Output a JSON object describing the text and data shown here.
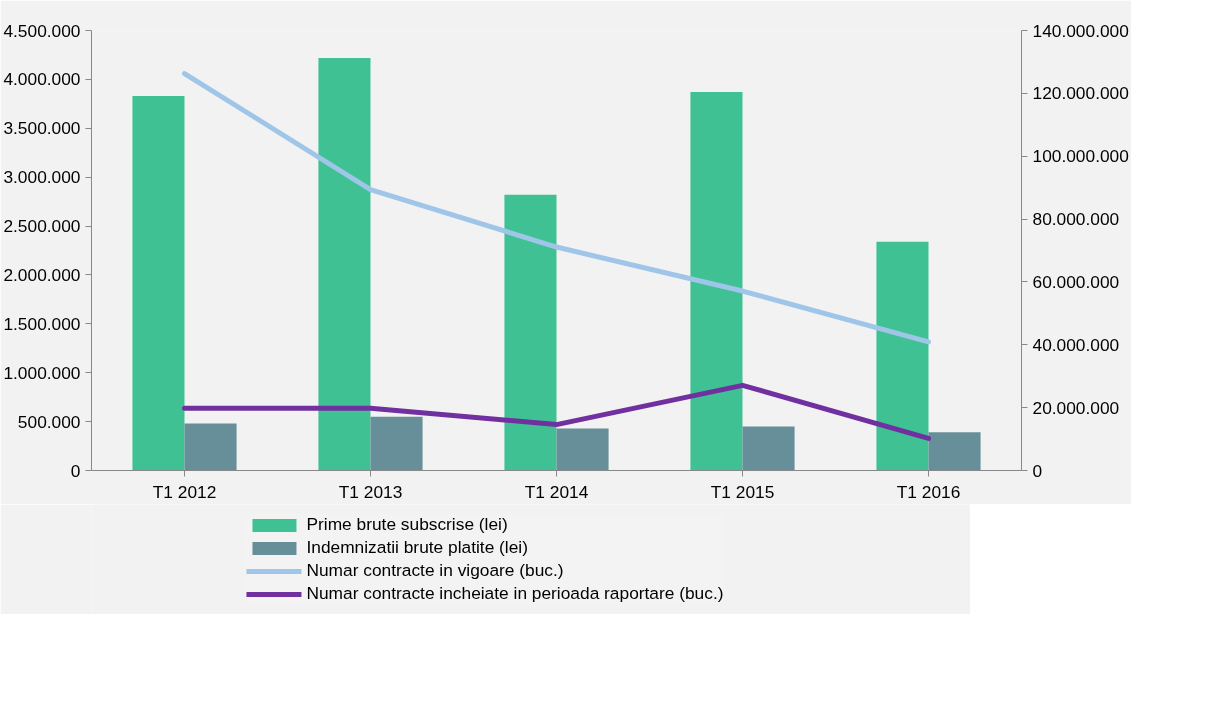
{
  "chart_data": {
    "type": "bar",
    "categories": [
      "T1 2012",
      "T1 2013",
      "T1 2014",
      "T1 2015",
      "T1 2016"
    ],
    "series": [
      {
        "name": "Prime brute subscrise (lei)",
        "color": "#3fc194",
        "values": [
          3830000,
          4220000,
          2820000,
          3870000,
          2340000
        ]
      },
      {
        "name": "Indemnizatii brute platite (lei)",
        "color": "#668f99",
        "values": [
          480000,
          550000,
          430000,
          450000,
          390000
        ]
      },
      {
        "name": "Numar contracte in vigoare (buc.)",
        "type": "line",
        "axis": "y2",
        "color": "#9fc5e8",
        "values": [
          126300000,
          89400000,
          71100000,
          57100000,
          40900000
        ]
      },
      {
        "name": "Numar contracte incheiate in perioada raportare (buc.)",
        "type": "line",
        "axis": "y2",
        "color": "#7030a0",
        "values": [
          19800000,
          19800000,
          14600000,
          27100000,
          10200000
        ]
      }
    ],
    "ylim": [
      0,
      4500000
    ],
    "yticks": [
      {
        "value": 0,
        "label": "0"
      },
      {
        "value": 500000,
        "label": "500.000"
      },
      {
        "value": 1000000,
        "label": "1.000.000"
      },
      {
        "value": 1500000,
        "label": "1.500.000"
      },
      {
        "value": 2000000,
        "label": "2.000.000"
      },
      {
        "value": 2500000,
        "label": "2.500.000"
      },
      {
        "value": 3000000,
        "label": "3.000.000"
      },
      {
        "value": 3500000,
        "label": "3.500.000"
      },
      {
        "value": 4000000,
        "label": "4.000.000"
      },
      {
        "value": 4500000,
        "label": "4.500.000"
      }
    ],
    "y2lim": [
      0,
      140000000
    ],
    "y2ticks": [
      {
        "value": 0,
        "label": "0"
      },
      {
        "value": 20000000,
        "label": "20.000.000"
      },
      {
        "value": 40000000,
        "label": "40.000.000"
      },
      {
        "value": 60000000,
        "label": "60.000.000"
      },
      {
        "value": 80000000,
        "label": "80.000.000"
      },
      {
        "value": 100000000,
        "label": "100.000.000"
      },
      {
        "value": 120000000,
        "label": "120.000.000"
      },
      {
        "value": 140000000,
        "label": "140.000.000"
      }
    ],
    "grid": false,
    "legend": "bottom"
  }
}
